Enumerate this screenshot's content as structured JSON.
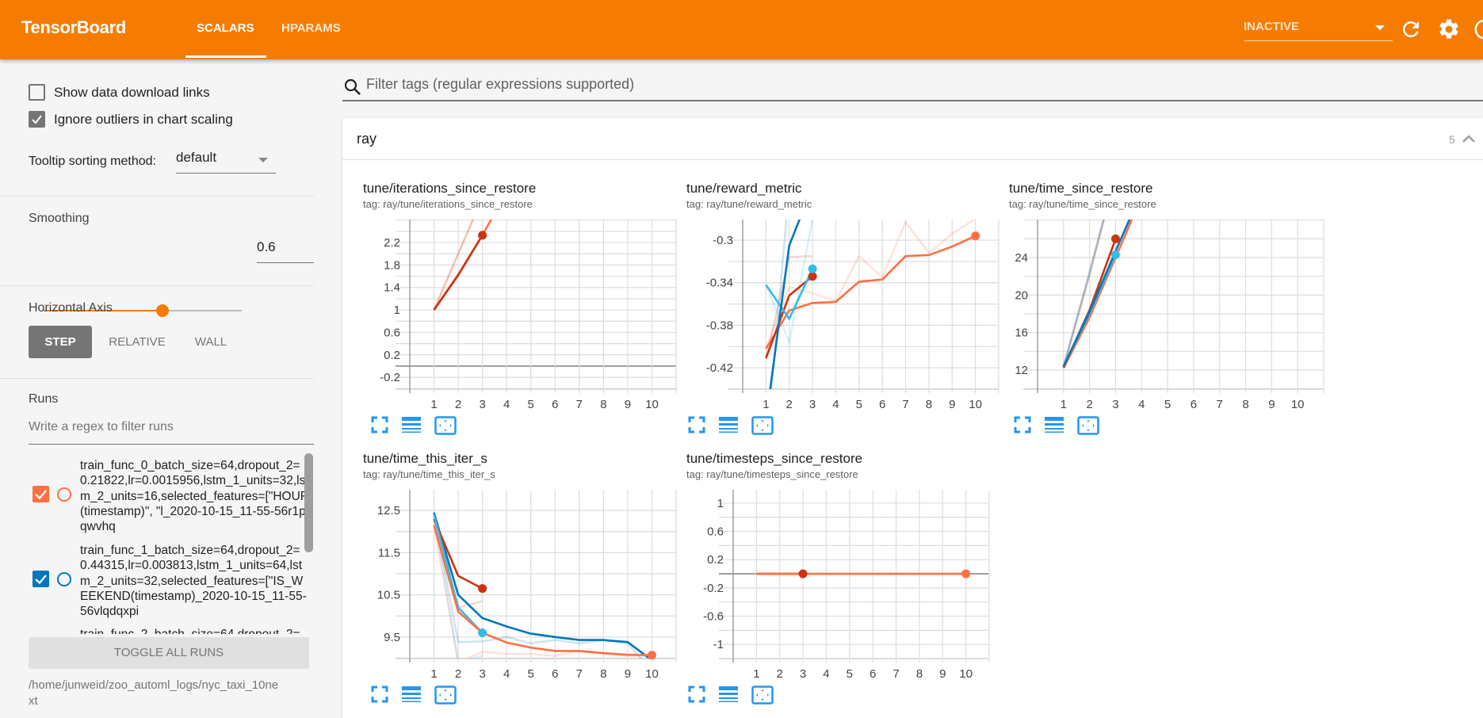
{
  "header": {
    "title": "TensorBoard",
    "tabs": [
      {
        "label": "SCALARS",
        "active": true
      },
      {
        "label": "HPARAMS",
        "active": false
      }
    ],
    "run_status": "INACTIVE",
    "accent_color": "#f57c00"
  },
  "sidebar": {
    "show_download_links": {
      "label": "Show data download links",
      "checked": false
    },
    "ignore_outliers": {
      "label": "Ignore outliers in chart scaling",
      "checked": true
    },
    "tooltip_sorting": {
      "label": "Tooltip sorting method:",
      "value": "default"
    },
    "smoothing": {
      "label": "Smoothing",
      "value": "0.6",
      "level": 0.6
    },
    "horizontal_axis": {
      "label": "Horizontal Axis",
      "options": [
        "STEP",
        "RELATIVE",
        "WALL"
      ],
      "selected": "STEP"
    },
    "runs": {
      "label": "Runs",
      "filter_placeholder": "Write a regex to filter runs",
      "items": [
        {
          "name": "train_func_0_batch_size=64,dropout_2=0.21822,lr=0.0015956,lstm_1_units=32,lstm_2_units=16,selected_features=[\"HOUR(timestamp)\", \"l_2020-10-15_11-55-56r1pqwvhq",
          "checked": true,
          "color": "#ff7043"
        },
        {
          "name": "train_func_1_batch_size=64,dropout_2=0.44315,lr=0.003813,lstm_1_units=64,lstm_2_units=32,selected_features=[\"IS_WEEKEND(timestamp)_2020-10-15_11-55-56vlqdqxpi",
          "checked": true,
          "color": "#0077bb"
        },
        {
          "name": "train_func_2_batch_size=64,dropout_2=",
          "checked": true,
          "color": "#cc3311"
        }
      ],
      "toggle_label": "TOGGLE ALL RUNS",
      "logdir": "/home/junweid/zoo_automl_logs/nyc_taxi_10next"
    }
  },
  "main": {
    "filter_placeholder": "Filter tags (regular expressions supported)",
    "group": {
      "name": "ray",
      "count": "5"
    }
  },
  "chart_data": [
    {
      "type": "line",
      "title": "tune/iterations_since_restore",
      "tag_label": "tag: ray/tune/iterations_since_restore",
      "x_ticks": [
        "1",
        "2",
        "3",
        "4",
        "5",
        "6",
        "7",
        "8",
        "9",
        "10"
      ],
      "xlim": [
        0,
        11
      ],
      "ylim": [
        -0.41,
        2.61
      ],
      "y_ticks": [
        "-0.2",
        "0.2",
        "0.6",
        "1",
        "1.4",
        "1.8",
        "2.2"
      ],
      "y_grid_step": 0.2,
      "series": [
        {
          "color": "#ff7043",
          "raw": [
            [
              1,
              1
            ],
            [
              2,
              2
            ],
            [
              3,
              3
            ]
          ],
          "smoothed": [
            [
              1,
              1
            ],
            [
              2,
              1.63
            ],
            [
              3,
              2.33
            ],
            [
              4,
              3.1
            ]
          ],
          "marker": null
        },
        {
          "color": "#cc3311",
          "raw": [
            [
              1,
              1
            ],
            [
              2,
              2
            ],
            [
              3,
              3
            ]
          ],
          "smoothed": [
            [
              1,
              1
            ],
            [
              2,
              1.62
            ],
            [
              3,
              2.33
            ]
          ],
          "marker": [
            3,
            2.33
          ]
        }
      ]
    },
    {
      "type": "line",
      "title": "tune/reward_metric",
      "tag_label": "tag: ray/tune/reward_metric",
      "x_ticks": [
        "1",
        "2",
        "3",
        "4",
        "5",
        "6",
        "7",
        "8",
        "9",
        "10"
      ],
      "xlim": [
        0,
        11
      ],
      "ylim": [
        -0.44,
        -0.2806
      ],
      "y_ticks": [
        "-0.42",
        "-0.38",
        "-0.34",
        "-0.3"
      ],
      "y_grid_step": 0.02,
      "series": [
        {
          "color": "#ff7043",
          "raw": [
            [
              1,
              -0.402
            ],
            [
              2,
              -0.344
            ],
            [
              3,
              -0.35
            ],
            [
              4,
              -0.357
            ],
            [
              5,
              -0.315
            ],
            [
              6,
              -0.335
            ],
            [
              7,
              -0.283
            ],
            [
              8,
              -0.312
            ],
            [
              9,
              -0.294
            ],
            [
              10,
              -0.28
            ]
          ],
          "smoothed": [
            [
              1,
              -0.402
            ],
            [
              2,
              -0.366
            ],
            [
              3,
              -0.359
            ],
            [
              4,
              -0.358
            ],
            [
              5,
              -0.339
            ],
            [
              6,
              -0.337
            ],
            [
              7,
              -0.315
            ],
            [
              8,
              -0.314
            ],
            [
              9,
              -0.306
            ],
            [
              10,
              -0.296
            ]
          ],
          "marker": [
            10,
            -0.296
          ]
        },
        {
          "color": "#cc3311",
          "raw": [
            [
              1,
              -0.411
            ],
            [
              2,
              -0.316
            ],
            [
              3,
              -0.315
            ]
          ],
          "smoothed": [
            [
              1,
              -0.411
            ],
            [
              2,
              -0.352
            ],
            [
              3,
              -0.334
            ]
          ],
          "marker": [
            3,
            -0.334
          ]
        },
        {
          "color": "#33bbee",
          "raw": [
            [
              1,
              -0.342
            ],
            [
              2,
              -0.396
            ],
            [
              3,
              -0.28
            ]
          ],
          "smoothed": [
            [
              1,
              -0.342
            ],
            [
              2,
              -0.374
            ],
            [
              3,
              -0.327
            ]
          ],
          "marker": [
            3,
            -0.327
          ]
        },
        {
          "color": "#0077bb",
          "raw": [
            [
              1,
              -0.5
            ],
            [
              2,
              -0.25
            ],
            [
              3,
              -0.2
            ]
          ],
          "smoothed": [
            [
              1,
              -0.47
            ],
            [
              2,
              -0.305
            ],
            [
              3,
              -0.25
            ]
          ],
          "marker": null
        }
      ]
    },
    {
      "type": "line",
      "title": "tune/time_since_restore",
      "tag_label": "tag: ray/tune/time_since_restore",
      "x_ticks": [
        "1",
        "2",
        "3",
        "4",
        "5",
        "6",
        "7",
        "8",
        "9",
        "10"
      ],
      "xlim": [
        0,
        11
      ],
      "ylim": [
        9.97,
        28.06
      ],
      "y_ticks": [
        "12",
        "16",
        "20",
        "24"
      ],
      "y_grid_step": 2,
      "series": [
        {
          "color": "#ff7043",
          "raw": [
            [
              1,
              12.2
            ],
            [
              2,
              22
            ],
            [
              3,
              33
            ]
          ],
          "smoothed": [
            [
              1,
              12.2
            ],
            [
              2,
              17.6
            ],
            [
              3,
              24
            ],
            [
              4,
              30.5
            ]
          ],
          "marker": null
        },
        {
          "color": "#cc3311",
          "raw": [
            [
              1,
              12.3
            ],
            [
              2,
              22.5
            ],
            [
              3,
              33
            ]
          ],
          "smoothed": [
            [
              1,
              12.3
            ],
            [
              2,
              18.4
            ],
            [
              3,
              26
            ]
          ],
          "marker": [
            3,
            26
          ]
        },
        {
          "color": "#33bbee",
          "raw": [
            [
              1,
              12.4
            ],
            [
              2,
              22.3
            ],
            [
              3,
              32.5
            ]
          ],
          "smoothed": [
            [
              1,
              12.4
            ],
            [
              2,
              18
            ],
            [
              3,
              24.3
            ]
          ],
          "marker": [
            3,
            24.3
          ]
        },
        {
          "color": "#0077bb",
          "raw": [
            [
              1,
              12.4
            ],
            [
              2,
              22.3
            ],
            [
              3,
              33
            ]
          ],
          "smoothed": [
            [
              1,
              12.4
            ],
            [
              2,
              18.2
            ],
            [
              3,
              24.7
            ],
            [
              4,
              31
            ]
          ],
          "marker": null
        }
      ]
    },
    {
      "type": "line",
      "title": "tune/time_this_iter_s",
      "tag_label": "tag: ray/tune/time_this_iter_s",
      "x_ticks": [
        "1",
        "2",
        "3",
        "4",
        "5",
        "6",
        "7",
        "8",
        "9",
        "10"
      ],
      "xlim": [
        0,
        11
      ],
      "ylim": [
        8.99,
        12.99
      ],
      "y_ticks": [
        "9.5",
        "10.5",
        "11.5",
        "12.5"
      ],
      "y_grid_step": 0.5,
      "series": [
        {
          "color": "#0077bb",
          "raw": [
            [
              1,
              12.4
            ],
            [
              2,
              9.38
            ],
            [
              3,
              9.4
            ],
            [
              4,
              9.5
            ],
            [
              5,
              9.35
            ],
            [
              6,
              9.43
            ],
            [
              7,
              9.35
            ],
            [
              8,
              9.43
            ],
            [
              9,
              9.35
            ],
            [
              10,
              8.7
            ]
          ],
          "smoothed": [
            [
              1,
              12.45
            ],
            [
              2,
              10.5
            ],
            [
              3,
              9.95
            ],
            [
              4,
              9.75
            ],
            [
              5,
              9.58
            ],
            [
              6,
              9.5
            ],
            [
              7,
              9.43
            ],
            [
              8,
              9.43
            ],
            [
              9,
              9.38
            ],
            [
              10,
              8.95
            ]
          ],
          "marker": null
        },
        {
          "color": "#cc3311",
          "raw": [
            [
              1,
              12.3
            ],
            [
              2,
              10.2
            ],
            [
              3,
              10.35
            ]
          ],
          "smoothed": [
            [
              1,
              12.3
            ],
            [
              2,
              10.95
            ],
            [
              3,
              10.65
            ]
          ],
          "marker": [
            3,
            10.65
          ]
        },
        {
          "color": "#33bbee",
          "raw": [
            [
              1,
              12.4
            ],
            [
              2,
              8.9
            ],
            [
              3,
              9.05
            ]
          ],
          "smoothed": [
            [
              1,
              12.4
            ],
            [
              2,
              10.2
            ],
            [
              3,
              9.6
            ]
          ],
          "marker": [
            3,
            9.6
          ]
        },
        {
          "color": "#ff7043",
          "raw": [
            [
              1,
              12.15
            ],
            [
              2,
              8.9
            ],
            [
              3,
              9.15
            ],
            [
              4,
              9.1
            ],
            [
              5,
              9.1
            ],
            [
              6,
              9.05
            ],
            [
              7,
              9.17
            ],
            [
              8,
              9.1
            ],
            [
              9,
              9.05
            ],
            [
              10,
              9.07
            ]
          ],
          "smoothed": [
            [
              1,
              12.15
            ],
            [
              2,
              10.1
            ],
            [
              3,
              9.6
            ],
            [
              4,
              9.37
            ],
            [
              5,
              9.25
            ],
            [
              6,
              9.17
            ],
            [
              7,
              9.17
            ],
            [
              8,
              9.12
            ],
            [
              9,
              9.08
            ],
            [
              10,
              9.07
            ]
          ],
          "marker": [
            10,
            9.07
          ]
        }
      ]
    },
    {
      "type": "line",
      "title": "tune/timesteps_since_restore",
      "tag_label": "tag: ray/tune/timesteps_since_restore",
      "x_ticks": [
        "1",
        "2",
        "3",
        "4",
        "5",
        "6",
        "7",
        "8",
        "9",
        "10"
      ],
      "xlim": [
        0,
        11
      ],
      "ylim": [
        -1.2,
        1.19
      ],
      "y_ticks": [
        "-1",
        "-0.6",
        "-0.2",
        "0.2",
        "0.6",
        "1"
      ],
      "y_grid_step": 0.2,
      "series": [
        {
          "color": "#cc3311",
          "raw": [
            [
              1,
              0
            ],
            [
              2,
              0
            ],
            [
              3,
              0
            ]
          ],
          "smoothed": [
            [
              1,
              0
            ],
            [
              2,
              0
            ],
            [
              3,
              0
            ]
          ],
          "marker": [
            3,
            0
          ]
        },
        {
          "color": "#ff7043",
          "raw": [
            [
              1,
              0
            ],
            [
              10,
              0
            ]
          ],
          "smoothed": [
            [
              1,
              0
            ],
            [
              2,
              0
            ],
            [
              3,
              0
            ],
            [
              4,
              0
            ],
            [
              5,
              0
            ],
            [
              6,
              0
            ],
            [
              7,
              0
            ],
            [
              8,
              0
            ],
            [
              9,
              0
            ],
            [
              10,
              0
            ]
          ],
          "marker": [
            10,
            0
          ]
        }
      ]
    }
  ]
}
